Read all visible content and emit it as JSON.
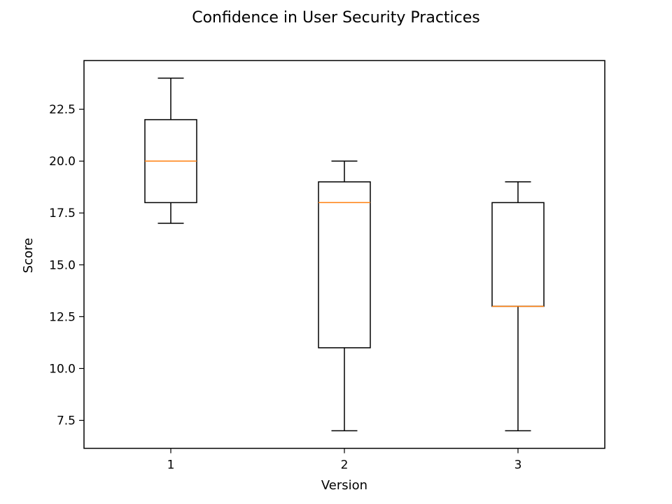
{
  "chart_data": {
    "type": "box",
    "title": "Confidence in User Security Practices",
    "xlabel": "Version",
    "ylabel": "Score",
    "ylim": [
      6.15,
      24.85
    ],
    "yticks": [
      7.5,
      10.0,
      12.5,
      15.0,
      17.5,
      20.0,
      22.5
    ],
    "ytick_labels": [
      "7.5",
      "10.0",
      "12.5",
      "15.0",
      "17.5",
      "20.0",
      "22.5"
    ],
    "grid": false,
    "categories": [
      "1",
      "2",
      "3"
    ],
    "boxes": [
      {
        "category": "1",
        "whisker_low": 17,
        "q1": 18,
        "median": 20,
        "q3": 22,
        "whisker_high": 24
      },
      {
        "category": "2",
        "whisker_low": 7,
        "q1": 11,
        "median": 18,
        "q3": 19,
        "whisker_high": 20
      },
      {
        "category": "3",
        "whisker_low": 7,
        "q1": 13,
        "median": 13,
        "q3": 18,
        "whisker_high": 19
      }
    ],
    "colors": {
      "box": "#000000",
      "median": "#ff7f0e",
      "axes": "#000000"
    }
  }
}
